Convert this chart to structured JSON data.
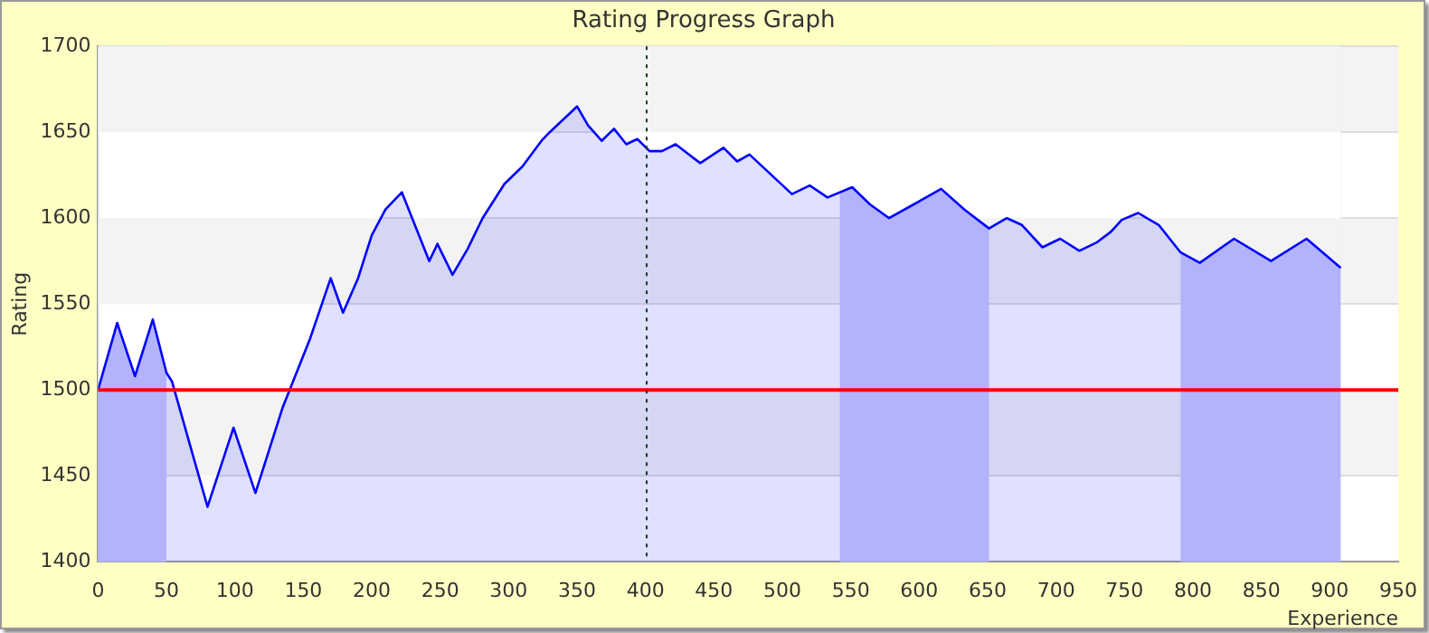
{
  "chart_data": {
    "type": "area",
    "title": "Rating Progress Graph",
    "xlabel": "Experience",
    "ylabel": "Rating",
    "series": [
      {
        "color": "#0000ff",
        "x": [
          0,
          14,
          27,
          40,
          50,
          54,
          80,
          99,
          115,
          135,
          155,
          170,
          179,
          190,
          200,
          210,
          222,
          242,
          248,
          259,
          270,
          281,
          297,
          310,
          324,
          330,
          350,
          358,
          368,
          377,
          386,
          394,
          403,
          412,
          422,
          440,
          457,
          467,
          476,
          507,
          520,
          533,
          551,
          564,
          578,
          596,
          616,
          633,
          651,
          664,
          675,
          690,
          703,
          717,
          730,
          740,
          748,
          760,
          775,
          791,
          805,
          830,
          857,
          883,
          908
        ],
        "values": [
          1500,
          1539,
          1508,
          1541,
          1510,
          1505,
          1432,
          1478,
          1440,
          1490,
          1530,
          1565,
          1545,
          1565,
          1590,
          1605,
          1615,
          1575,
          1585,
          1567,
          1582,
          1600,
          1620,
          1630,
          1645,
          1650,
          1665,
          1654,
          1645,
          1652,
          1643,
          1646,
          1639,
          1639,
          1643,
          1632,
          1641,
          1633,
          1637,
          1614,
          1619,
          1612,
          1618,
          1608,
          1600,
          1608,
          1617,
          1605,
          1594,
          1600,
          1596,
          1583,
          1588,
          1581,
          1586,
          1592,
          1599,
          1603,
          1596,
          1580,
          1574,
          1588,
          1575,
          1588,
          1571
        ]
      }
    ],
    "xlim": [
      0,
      950
    ],
    "ylim": [
      1400,
      1700
    ],
    "xticks": [
      0,
      50,
      100,
      150,
      200,
      250,
      300,
      350,
      400,
      450,
      500,
      550,
      600,
      650,
      700,
      750,
      800,
      850,
      900,
      950
    ],
    "yticks": [
      1400,
      1450,
      1500,
      1550,
      1600,
      1650,
      1700
    ],
    "grid": "y",
    "legend": false,
    "marker": "none",
    "line_style": "solid",
    "ref_lines": [
      {
        "axis": "y",
        "value": 1500,
        "color": "#ff0000",
        "line_style": "solid"
      },
      {
        "axis": "x",
        "value": 400,
        "color": "#1a3a1a",
        "line_style": "dotted"
      }
    ],
    "bands": [
      {
        "axis": "x",
        "from": 0,
        "to": 50,
        "color": "#ccccfc"
      },
      {
        "axis": "x",
        "from": 542,
        "to": 651,
        "color": "#ccccfc"
      },
      {
        "axis": "x",
        "from": 791,
        "to": 908,
        "color": "#ccccfc"
      }
    ]
  }
}
